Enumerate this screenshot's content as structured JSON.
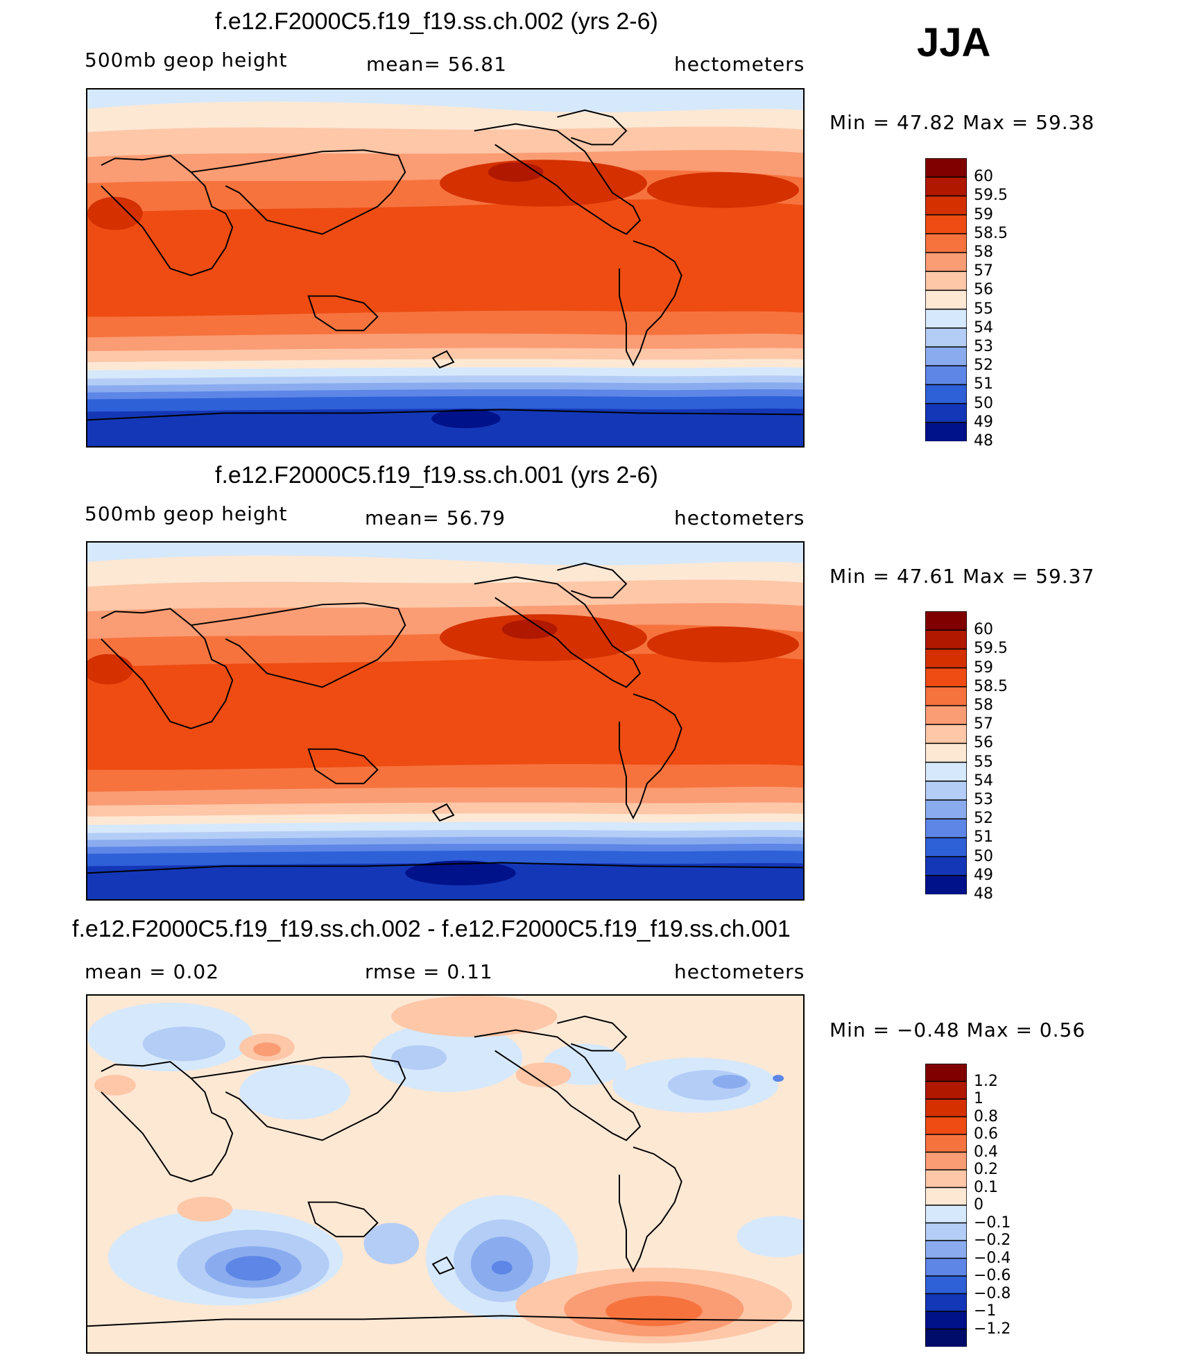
{
  "season": "JJA",
  "panels": [
    {
      "title": "f.e12.F2000C5.f19_f19.ss.ch.002 (yrs 2-6)",
      "left_label": "500mb geop height",
      "center_label": "mean=   56.81",
      "units": "hectometers",
      "stats": "Min =   47.82 Max =   59.38"
    },
    {
      "title": "f.e12.F2000C5.f19_f19.ss.ch.001 (yrs 2-6)",
      "left_label": "500mb geop height",
      "center_label": "mean=   56.79",
      "units": "hectometers",
      "stats": "Min =   47.61 Max =   59.37"
    },
    {
      "title": "f.e12.F2000C5.f19_f19.ss.ch.002 - f.e12.F2000C5.f19_f19.ss.ch.001",
      "left_label": "mean =    0.02",
      "center_label": "rmse =    0.11",
      "units": "hectometers",
      "stats": "Min =   −0.48 Max =    0.56"
    }
  ],
  "chart_data": [
    {
      "type": "heatmap",
      "title": "f.e12.F2000C5.f19_f19.ss.ch.002 (yrs 2-6)",
      "variable": "500mb geop height",
      "units": "hectometers",
      "mean": 56.81,
      "min": 47.82,
      "max": 59.38,
      "colorbar_levels": [
        "60",
        "59.5",
        "59",
        "58.5",
        "58",
        "57",
        "56",
        "55",
        "54",
        "53",
        "52",
        "51",
        "50",
        "49",
        "48"
      ],
      "colors": [
        "#800000",
        "#b01800",
        "#d43000",
        "#ee4c12",
        "#f6733e",
        "#fa9c74",
        "#fdc7a8",
        "#fde8d4",
        "#d6e8fb",
        "#b3cdf6",
        "#8aacef",
        "#5d86e6",
        "#2e60d8",
        "#1437b8",
        "#00128a"
      ]
    },
    {
      "type": "heatmap",
      "title": "f.e12.F2000C5.f19_f19.ss.ch.001 (yrs 2-6)",
      "variable": "500mb geop height",
      "units": "hectometers",
      "mean": 56.79,
      "min": 47.61,
      "max": 59.37,
      "colorbar_levels": [
        "60",
        "59.5",
        "59",
        "58.5",
        "58",
        "57",
        "56",
        "55",
        "54",
        "53",
        "52",
        "51",
        "50",
        "49",
        "48"
      ],
      "colors": [
        "#800000",
        "#b01800",
        "#d43000",
        "#ee4c12",
        "#f6733e",
        "#fa9c74",
        "#fdc7a8",
        "#fde8d4",
        "#d6e8fb",
        "#b3cdf6",
        "#8aacef",
        "#5d86e6",
        "#2e60d8",
        "#1437b8",
        "#00128a"
      ]
    },
    {
      "type": "heatmap",
      "title": "f.e12.F2000C5.f19_f19.ss.ch.002 - f.e12.F2000C5.f19_f19.ss.ch.001",
      "units": "hectometers",
      "mean": 0.02,
      "rmse": 0.11,
      "min": -0.48,
      "max": 0.56,
      "colorbar_levels": [
        "1.2",
        "1",
        "0.8",
        "0.6",
        "0.4",
        "0.2",
        "0.1",
        "0",
        "−0.1",
        "−0.2",
        "−0.4",
        "−0.6",
        "−0.8",
        "−1",
        "−1.2"
      ],
      "colors": [
        "#800000",
        "#b01800",
        "#d43000",
        "#ee4c12",
        "#f6733e",
        "#fa9c74",
        "#fdc7a8",
        "#fde8d4",
        "#d6e8fb",
        "#b3cdf6",
        "#8aacef",
        "#5d86e6",
        "#2e60d8",
        "#1437b8",
        "#00128a",
        "#000c6a"
      ]
    }
  ]
}
